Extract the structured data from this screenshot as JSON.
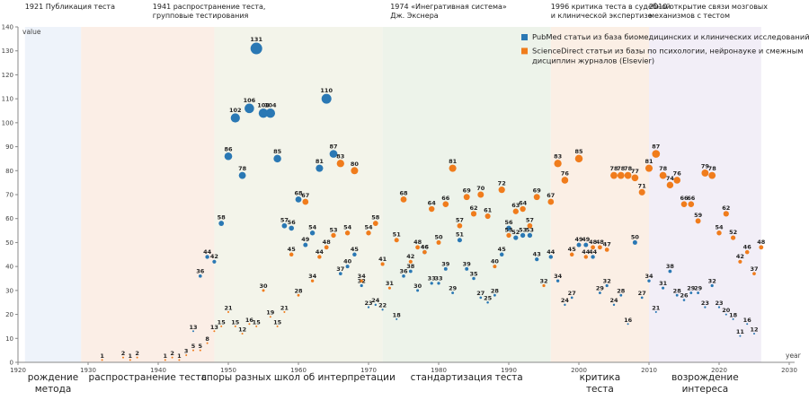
{
  "chart_data": {
    "type": "scatter",
    "xlabel": "year",
    "ylabel": "value",
    "xlim": [
      1920,
      2030
    ],
    "ylim": [
      0,
      140
    ],
    "x_ticks": [
      1920,
      1930,
      1940,
      1950,
      1960,
      1970,
      1980,
      1990,
      2000,
      2010,
      2020,
      2030
    ],
    "y_ticks": [
      0,
      10,
      20,
      30,
      40,
      50,
      60,
      70,
      80,
      90,
      100,
      110,
      120,
      130,
      140
    ],
    "legend": {
      "position": "top-right",
      "entries": [
        {
          "series": "pubmed",
          "lines": [
            "PubMed статьи из база биомедицинских и клинических исследований"
          ]
        },
        {
          "series": "sciencedirect",
          "lines": [
            "ScienceDirect статьи из базы по психологии, нейронауке и смежным",
            "дисциплин журналов (Elsevier)"
          ]
        }
      ]
    },
    "eras": [
      {
        "start": 1921,
        "end": 1929,
        "color": "#eef3fa",
        "label_lines": [
          "рождение",
          "метода"
        ]
      },
      {
        "start": 1929,
        "end": 1948,
        "color": "#fbeee6",
        "label_lines": [
          "распространение теста"
        ]
      },
      {
        "start": 1948,
        "end": 1972,
        "color": "#f3f4ea",
        "label_lines": [
          "споры разных школ об интерпретации"
        ]
      },
      {
        "start": 1972,
        "end": 1996,
        "color": "#edf3ea",
        "label_lines": [
          "стандартизация теста"
        ]
      },
      {
        "start": 1996,
        "end": 2010,
        "color": "#fbefe5",
        "label_lines": [
          "критика",
          "теста"
        ]
      },
      {
        "start": 2010,
        "end": 2026,
        "color": "#f2eef7",
        "label_lines": [
          "возрождение",
          "интереса"
        ]
      }
    ],
    "events": [
      {
        "year": 1921,
        "anchor": "start",
        "lines": [
          "1921 Публикация теста"
        ]
      },
      {
        "year": 1941,
        "anchor": "start",
        "lines": [
          "1941 распространение теста,",
          "групповые тестирования"
        ]
      },
      {
        "year": 1974,
        "anchor": "start",
        "lines": [
          "1974 «Инегративная система»",
          "Дж. Экснера"
        ]
      },
      {
        "year": 1996,
        "anchor": "start",
        "lines": [
          "1996 критика теста  в судебной",
          "и клинической экспертизе"
        ]
      },
      {
        "year": 2010,
        "anchor": "start",
        "lines": [
          "2010 открытие связи мозговых",
          "механизмов с тестом"
        ]
      }
    ],
    "series": [
      {
        "name": "PubMed",
        "key": "pubmed",
        "color": "#2a78b4",
        "points": [
          [
            1945,
            13
          ],
          [
            1946,
            36
          ],
          [
            1947,
            44
          ],
          [
            1948,
            42
          ],
          [
            1949,
            58
          ],
          [
            1950,
            86
          ],
          [
            1951,
            102
          ],
          [
            1952,
            78
          ],
          [
            1953,
            106
          ],
          [
            1954,
            131
          ],
          [
            1955,
            104
          ],
          [
            1956,
            104
          ],
          [
            1957,
            85
          ],
          [
            1958,
            57
          ],
          [
            1959,
            56
          ],
          [
            1960,
            68
          ],
          [
            1961,
            49
          ],
          [
            1962,
            54
          ],
          [
            1963,
            81
          ],
          [
            1964,
            110
          ],
          [
            1965,
            87
          ],
          [
            1966,
            37
          ],
          [
            1967,
            40
          ],
          [
            1968,
            45
          ],
          [
            1969,
            32
          ],
          [
            1970,
            23
          ],
          [
            1971,
            24
          ],
          [
            1972,
            22
          ],
          [
            1974,
            18
          ],
          [
            1975,
            36
          ],
          [
            1976,
            38
          ],
          [
            1977,
            30
          ],
          [
            1978,
            46
          ],
          [
            1979,
            33
          ],
          [
            1980,
            33
          ],
          [
            1981,
            39
          ],
          [
            1982,
            29
          ],
          [
            1983,
            51
          ],
          [
            1984,
            39
          ],
          [
            1985,
            35
          ],
          [
            1986,
            27
          ],
          [
            1987,
            25
          ],
          [
            1988,
            28
          ],
          [
            1989,
            45
          ],
          [
            1990,
            56
          ],
          [
            1991,
            52
          ],
          [
            1992,
            53
          ],
          [
            1993,
            53
          ],
          [
            1994,
            43
          ],
          [
            1996,
            44
          ],
          [
            1997,
            34
          ],
          [
            1998,
            24
          ],
          [
            1999,
            27
          ],
          [
            2000,
            49
          ],
          [
            2001,
            49
          ],
          [
            2002,
            44
          ],
          [
            2003,
            29
          ],
          [
            2004,
            32
          ],
          [
            2005,
            24
          ],
          [
            2006,
            28
          ],
          [
            2007,
            16
          ],
          [
            2008,
            50
          ],
          [
            2009,
            27
          ],
          [
            2010,
            34
          ],
          [
            2011,
            21
          ],
          [
            2012,
            31
          ],
          [
            2013,
            38
          ],
          [
            2014,
            28
          ],
          [
            2015,
            26
          ],
          [
            2016,
            29
          ],
          [
            2017,
            29
          ],
          [
            2018,
            23
          ],
          [
            2019,
            32
          ],
          [
            2020,
            23
          ],
          [
            2021,
            20
          ],
          [
            2022,
            18
          ],
          [
            2023,
            11
          ],
          [
            2024,
            16
          ],
          [
            2025,
            12
          ]
        ]
      },
      {
        "name": "ScienceDirect",
        "key": "sciencedirect",
        "color": "#f07c1c",
        "points": [
          [
            1932,
            1
          ],
          [
            1935,
            2
          ],
          [
            1936,
            1
          ],
          [
            1937,
            2
          ],
          [
            1941,
            1
          ],
          [
            1942,
            2
          ],
          [
            1943,
            1
          ],
          [
            1944,
            3
          ],
          [
            1945,
            5
          ],
          [
            1946,
            5
          ],
          [
            1947,
            8
          ],
          [
            1948,
            13
          ],
          [
            1949,
            15
          ],
          [
            1950,
            21
          ],
          [
            1951,
            15
          ],
          [
            1952,
            12
          ],
          [
            1953,
            16
          ],
          [
            1954,
            15
          ],
          [
            1955,
            30
          ],
          [
            1956,
            19
          ],
          [
            1957,
            15
          ],
          [
            1958,
            21
          ],
          [
            1959,
            45
          ],
          [
            1960,
            28
          ],
          [
            1961,
            67
          ],
          [
            1962,
            34
          ],
          [
            1963,
            44
          ],
          [
            1964,
            48
          ],
          [
            1965,
            53
          ],
          [
            1966,
            83
          ],
          [
            1967,
            54
          ],
          [
            1968,
            80
          ],
          [
            1969,
            34
          ],
          [
            1970,
            54
          ],
          [
            1971,
            58
          ],
          [
            1972,
            41
          ],
          [
            1973,
            31
          ],
          [
            1974,
            51
          ],
          [
            1975,
            68
          ],
          [
            1976,
            42
          ],
          [
            1977,
            48
          ],
          [
            1978,
            46
          ],
          [
            1979,
            64
          ],
          [
            1980,
            50
          ],
          [
            1981,
            66
          ],
          [
            1982,
            81
          ],
          [
            1983,
            57
          ],
          [
            1984,
            69
          ],
          [
            1985,
            62
          ],
          [
            1986,
            70
          ],
          [
            1987,
            61
          ],
          [
            1988,
            40
          ],
          [
            1989,
            72
          ],
          [
            1990,
            53
          ],
          [
            1991,
            63
          ],
          [
            1992,
            64
          ],
          [
            1993,
            57
          ],
          [
            1994,
            69
          ],
          [
            1995,
            32
          ],
          [
            1996,
            67
          ],
          [
            1997,
            83
          ],
          [
            1998,
            76
          ],
          [
            1999,
            45
          ],
          [
            2000,
            85
          ],
          [
            2001,
            44
          ],
          [
            2002,
            48
          ],
          [
            2003,
            48
          ],
          [
            2004,
            47
          ],
          [
            2005,
            78
          ],
          [
            2006,
            78
          ],
          [
            2007,
            78
          ],
          [
            2008,
            77
          ],
          [
            2009,
            71
          ],
          [
            2010,
            81
          ],
          [
            2011,
            87
          ],
          [
            2012,
            78
          ],
          [
            2013,
            74
          ],
          [
            2014,
            76
          ],
          [
            2015,
            66
          ],
          [
            2016,
            66
          ],
          [
            2017,
            59
          ],
          [
            2018,
            79
          ],
          [
            2019,
            78
          ],
          [
            2020,
            54
          ],
          [
            2021,
            62
          ],
          [
            2022,
            52
          ],
          [
            2023,
            42
          ],
          [
            2024,
            46
          ],
          [
            2025,
            37
          ],
          [
            2026,
            48
          ]
        ]
      }
    ]
  }
}
